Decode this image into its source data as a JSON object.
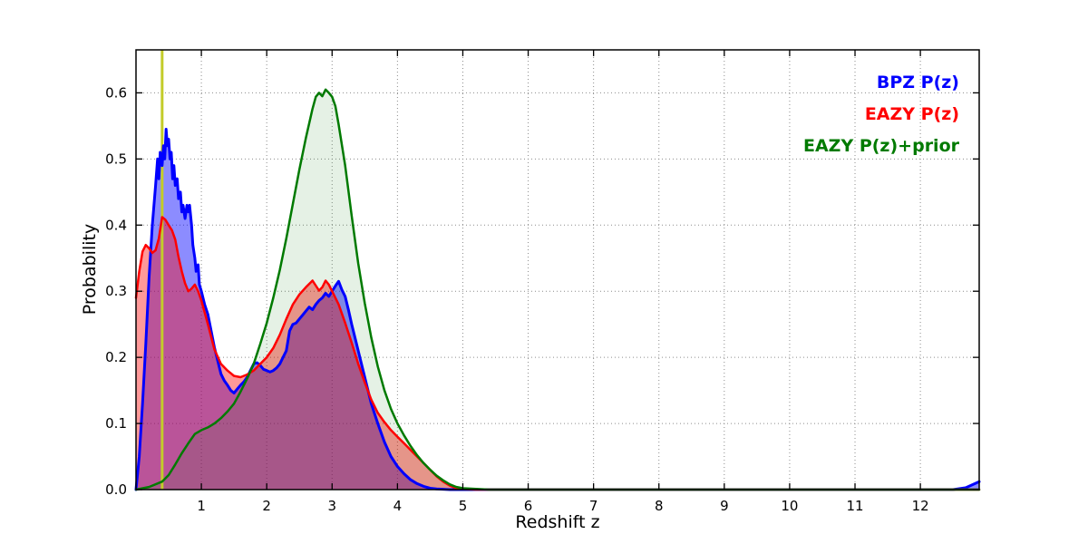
{
  "figure": {
    "background": "#ffffff"
  },
  "legend": {
    "position": "upper right",
    "items": [
      {
        "label": "BPZ P(z)",
        "color": "#0000ff"
      },
      {
        "label": "EAZY P(z)",
        "color": "#ff0000"
      },
      {
        "label": "EAZY P(z)+prior",
        "color": "#007a00"
      }
    ]
  },
  "chart_data": {
    "type": "area",
    "title": "",
    "xlabel": "Redshift z",
    "ylabel": "Probability",
    "xlim": [
      0,
      12.9
    ],
    "ylim": [
      0,
      0.665
    ],
    "xticks": [
      1,
      2,
      3,
      4,
      5,
      6,
      7,
      8,
      9,
      10,
      11,
      12
    ],
    "xtick_labels": [
      "1",
      "2",
      "3",
      "4",
      "5",
      "6",
      "7",
      "8",
      "9",
      "10",
      "11",
      "12"
    ],
    "yticks": [
      0.0,
      0.1,
      0.2,
      0.3,
      0.4,
      0.5,
      0.6
    ],
    "ytick_labels": [
      "0.0",
      "0.1",
      "0.2",
      "0.3",
      "0.4",
      "0.5",
      "0.6"
    ],
    "grid": true,
    "grid_style": "dotted",
    "legend_position": "upper right",
    "vline": {
      "x": 0.4,
      "color": "#c3cc29",
      "width": 3
    },
    "series": [
      {
        "id": "bpz",
        "name": "BPZ P(z)",
        "color": "#0000ff",
        "fill_opacity": 0.45,
        "line_width": 3,
        "points": [
          [
            0,
            0
          ],
          [
            0.05,
            0.05
          ],
          [
            0.1,
            0.13
          ],
          [
            0.15,
            0.22
          ],
          [
            0.2,
            0.32
          ],
          [
            0.25,
            0.4
          ],
          [
            0.3,
            0.46
          ],
          [
            0.33,
            0.5
          ],
          [
            0.35,
            0.47
          ],
          [
            0.37,
            0.51
          ],
          [
            0.4,
            0.49
          ],
          [
            0.42,
            0.52
          ],
          [
            0.44,
            0.5
          ],
          [
            0.46,
            0.545
          ],
          [
            0.48,
            0.52
          ],
          [
            0.5,
            0.53
          ],
          [
            0.52,
            0.5
          ],
          [
            0.54,
            0.51
          ],
          [
            0.56,
            0.47
          ],
          [
            0.58,
            0.49
          ],
          [
            0.6,
            0.46
          ],
          [
            0.63,
            0.47
          ],
          [
            0.65,
            0.44
          ],
          [
            0.68,
            0.45
          ],
          [
            0.7,
            0.42
          ],
          [
            0.72,
            0.43
          ],
          [
            0.75,
            0.41
          ],
          [
            0.78,
            0.43
          ],
          [
            0.8,
            0.42
          ],
          [
            0.82,
            0.43
          ],
          [
            0.85,
            0.4
          ],
          [
            0.87,
            0.37
          ],
          [
            0.9,
            0.35
          ],
          [
            0.92,
            0.33
          ],
          [
            0.95,
            0.34
          ],
          [
            0.97,
            0.31
          ],
          [
            1.0,
            0.3
          ],
          [
            1.05,
            0.28
          ],
          [
            1.1,
            0.265
          ],
          [
            1.15,
            0.24
          ],
          [
            1.2,
            0.215
          ],
          [
            1.25,
            0.195
          ],
          [
            1.3,
            0.175
          ],
          [
            1.35,
            0.165
          ],
          [
            1.4,
            0.158
          ],
          [
            1.45,
            0.15
          ],
          [
            1.5,
            0.146
          ],
          [
            1.55,
            0.152
          ],
          [
            1.6,
            0.158
          ],
          [
            1.65,
            0.163
          ],
          [
            1.7,
            0.17
          ],
          [
            1.75,
            0.18
          ],
          [
            1.8,
            0.19
          ],
          [
            1.85,
            0.192
          ],
          [
            1.9,
            0.188
          ],
          [
            1.95,
            0.182
          ],
          [
            2.0,
            0.18
          ],
          [
            2.05,
            0.178
          ],
          [
            2.1,
            0.18
          ],
          [
            2.15,
            0.184
          ],
          [
            2.2,
            0.19
          ],
          [
            2.25,
            0.2
          ],
          [
            2.3,
            0.21
          ],
          [
            2.35,
            0.24
          ],
          [
            2.4,
            0.25
          ],
          [
            2.45,
            0.252
          ],
          [
            2.5,
            0.258
          ],
          [
            2.55,
            0.264
          ],
          [
            2.6,
            0.27
          ],
          [
            2.65,
            0.276
          ],
          [
            2.7,
            0.272
          ],
          [
            2.75,
            0.28
          ],
          [
            2.8,
            0.286
          ],
          [
            2.85,
            0.29
          ],
          [
            2.9,
            0.297
          ],
          [
            2.95,
            0.292
          ],
          [
            3.0,
            0.3
          ],
          [
            3.05,
            0.308
          ],
          [
            3.1,
            0.315
          ],
          [
            3.15,
            0.302
          ],
          [
            3.2,
            0.292
          ],
          [
            3.25,
            0.272
          ],
          [
            3.3,
            0.25
          ],
          [
            3.4,
            0.21
          ],
          [
            3.5,
            0.17
          ],
          [
            3.6,
            0.13
          ],
          [
            3.7,
            0.1
          ],
          [
            3.8,
            0.072
          ],
          [
            3.9,
            0.05
          ],
          [
            4.0,
            0.035
          ],
          [
            4.1,
            0.024
          ],
          [
            4.2,
            0.015
          ],
          [
            4.3,
            0.009
          ],
          [
            4.4,
            0.005
          ],
          [
            4.5,
            0.002
          ],
          [
            4.6,
            0.001
          ],
          [
            4.8,
            0
          ],
          [
            12.5,
            0
          ],
          [
            12.7,
            0.003
          ],
          [
            12.9,
            0.012
          ]
        ]
      },
      {
        "id": "eazy",
        "name": "EAZY P(z)",
        "color": "#ff0000",
        "fill_opacity": 0.4,
        "line_width": 2.5,
        "points": [
          [
            0,
            0.29
          ],
          [
            0.05,
            0.33
          ],
          [
            0.1,
            0.36
          ],
          [
            0.15,
            0.37
          ],
          [
            0.2,
            0.365
          ],
          [
            0.25,
            0.358
          ],
          [
            0.3,
            0.362
          ],
          [
            0.35,
            0.38
          ],
          [
            0.4,
            0.412
          ],
          [
            0.45,
            0.408
          ],
          [
            0.5,
            0.4
          ],
          [
            0.55,
            0.392
          ],
          [
            0.6,
            0.378
          ],
          [
            0.65,
            0.352
          ],
          [
            0.7,
            0.33
          ],
          [
            0.75,
            0.312
          ],
          [
            0.8,
            0.3
          ],
          [
            0.85,
            0.304
          ],
          [
            0.9,
            0.31
          ],
          [
            0.95,
            0.3
          ],
          [
            1.0,
            0.286
          ],
          [
            1.1,
            0.25
          ],
          [
            1.2,
            0.212
          ],
          [
            1.3,
            0.19
          ],
          [
            1.4,
            0.18
          ],
          [
            1.5,
            0.172
          ],
          [
            1.6,
            0.17
          ],
          [
            1.7,
            0.174
          ],
          [
            1.8,
            0.18
          ],
          [
            1.9,
            0.19
          ],
          [
            2.0,
            0.2
          ],
          [
            2.1,
            0.214
          ],
          [
            2.2,
            0.234
          ],
          [
            2.3,
            0.258
          ],
          [
            2.4,
            0.28
          ],
          [
            2.5,
            0.295
          ],
          [
            2.6,
            0.306
          ],
          [
            2.7,
            0.316
          ],
          [
            2.8,
            0.301
          ],
          [
            2.85,
            0.306
          ],
          [
            2.9,
            0.316
          ],
          [
            2.95,
            0.31
          ],
          [
            3.0,
            0.3
          ],
          [
            3.1,
            0.28
          ],
          [
            3.2,
            0.252
          ],
          [
            3.3,
            0.222
          ],
          [
            3.4,
            0.19
          ],
          [
            3.5,
            0.162
          ],
          [
            3.6,
            0.136
          ],
          [
            3.7,
            0.116
          ],
          [
            3.8,
            0.102
          ],
          [
            3.9,
            0.09
          ],
          [
            4.0,
            0.08
          ],
          [
            4.1,
            0.07
          ],
          [
            4.2,
            0.06
          ],
          [
            4.3,
            0.05
          ],
          [
            4.4,
            0.04
          ],
          [
            4.5,
            0.03
          ],
          [
            4.6,
            0.02
          ],
          [
            4.7,
            0.012
          ],
          [
            4.8,
            0.006
          ],
          [
            4.9,
            0.002
          ],
          [
            5.0,
            0.001
          ],
          [
            5.2,
            0
          ],
          [
            12.9,
            0
          ]
        ]
      },
      {
        "id": "eazy-prior",
        "name": "EAZY P(z)+prior",
        "color": "#007a00",
        "fill_opacity": 0.1,
        "line_width": 2.5,
        "points": [
          [
            0,
            0
          ],
          [
            0.2,
            0.004
          ],
          [
            0.4,
            0.012
          ],
          [
            0.5,
            0.022
          ],
          [
            0.6,
            0.038
          ],
          [
            0.7,
            0.055
          ],
          [
            0.8,
            0.07
          ],
          [
            0.9,
            0.084
          ],
          [
            1.0,
            0.09
          ],
          [
            1.1,
            0.094
          ],
          [
            1.2,
            0.1
          ],
          [
            1.3,
            0.108
          ],
          [
            1.4,
            0.118
          ],
          [
            1.5,
            0.13
          ],
          [
            1.6,
            0.148
          ],
          [
            1.7,
            0.168
          ],
          [
            1.8,
            0.19
          ],
          [
            1.9,
            0.22
          ],
          [
            2.0,
            0.252
          ],
          [
            2.1,
            0.29
          ],
          [
            2.2,
            0.332
          ],
          [
            2.3,
            0.38
          ],
          [
            2.4,
            0.432
          ],
          [
            2.5,
            0.484
          ],
          [
            2.6,
            0.532
          ],
          [
            2.7,
            0.576
          ],
          [
            2.75,
            0.594
          ],
          [
            2.8,
            0.6
          ],
          [
            2.85,
            0.595
          ],
          [
            2.9,
            0.605
          ],
          [
            2.95,
            0.6
          ],
          [
            3.0,
            0.594
          ],
          [
            3.05,
            0.58
          ],
          [
            3.1,
            0.552
          ],
          [
            3.2,
            0.49
          ],
          [
            3.3,
            0.414
          ],
          [
            3.4,
            0.342
          ],
          [
            3.5,
            0.282
          ],
          [
            3.6,
            0.23
          ],
          [
            3.7,
            0.186
          ],
          [
            3.8,
            0.15
          ],
          [
            3.9,
            0.122
          ],
          [
            4.0,
            0.1
          ],
          [
            4.1,
            0.082
          ],
          [
            4.2,
            0.066
          ],
          [
            4.3,
            0.052
          ],
          [
            4.4,
            0.04
          ],
          [
            4.5,
            0.03
          ],
          [
            4.6,
            0.021
          ],
          [
            4.7,
            0.014
          ],
          [
            4.8,
            0.008
          ],
          [
            4.9,
            0.004
          ],
          [
            5.0,
            0.002
          ],
          [
            5.2,
            0.001
          ],
          [
            5.4,
            0
          ],
          [
            12.9,
            0
          ]
        ]
      }
    ]
  }
}
